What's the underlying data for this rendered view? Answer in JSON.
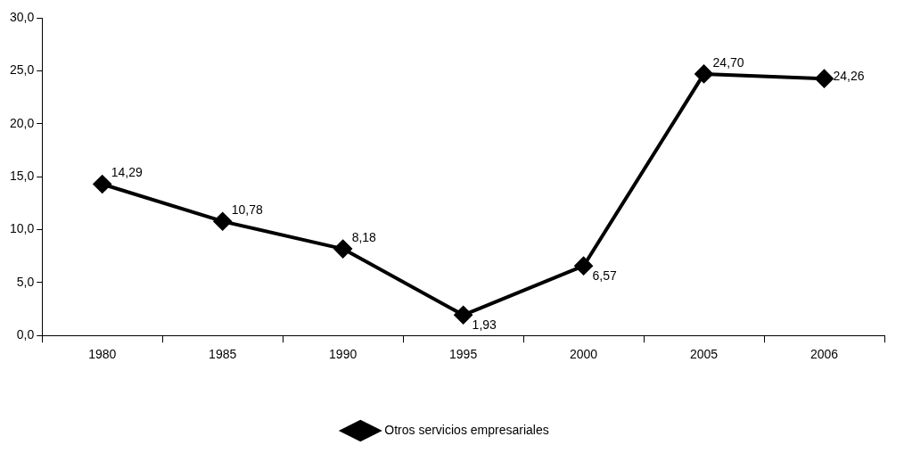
{
  "chart_data": {
    "type": "line",
    "categories": [
      "1980",
      "1985",
      "1990",
      "1995",
      "2000",
      "2005",
      "2006"
    ],
    "series": [
      {
        "name": "Otros servicios empresariales",
        "color": "#000000",
        "values": [
          14.29,
          10.78,
          8.18,
          1.93,
          6.57,
          24.7,
          24.26
        ],
        "value_labels": [
          "14,29",
          "10,78",
          "8,18",
          "1,93",
          "6,57",
          "24,70",
          "24,26"
        ]
      }
    ],
    "ylim": [
      0,
      30
    ],
    "yticks": [
      {
        "value": 0,
        "label": "0,0"
      },
      {
        "value": 5,
        "label": "5,0"
      },
      {
        "value": 10,
        "label": "10,0"
      },
      {
        "value": 15,
        "label": "15,0"
      },
      {
        "value": 20,
        "label": "20,0"
      },
      {
        "value": 25,
        "label": "25,0"
      },
      {
        "value": 30,
        "label": "30,0"
      }
    ],
    "grid": false,
    "legend": "bottom",
    "marker": "diamond",
    "line_style": "solid"
  }
}
